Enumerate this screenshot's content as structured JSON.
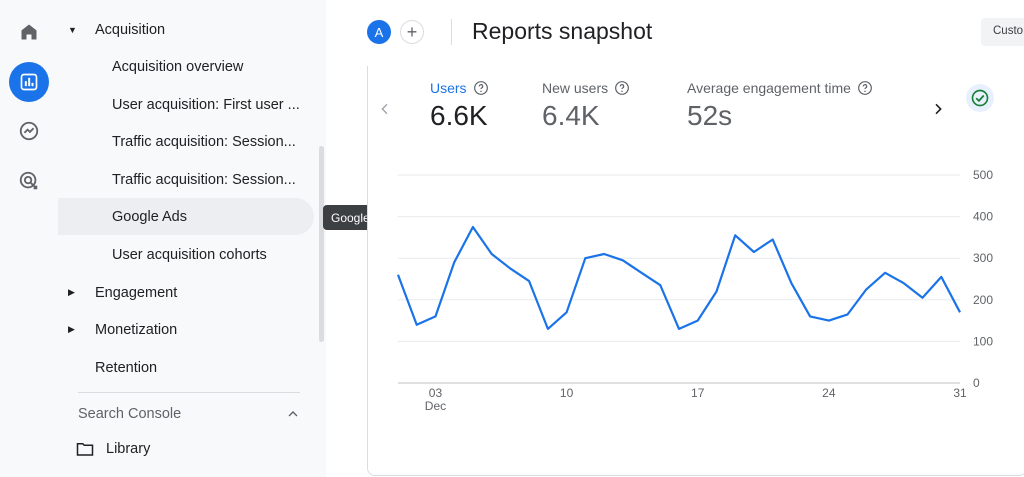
{
  "rail": {
    "items": [
      {
        "icon": "home-icon"
      },
      {
        "icon": "reports-icon",
        "active": true
      },
      {
        "icon": "explore-icon"
      },
      {
        "icon": "advertising-icon"
      }
    ]
  },
  "nav": {
    "acquisition": "Acquisition",
    "sub_items": [
      "Acquisition overview",
      "User acquisition: First user ...",
      "Traffic acquisition: Session...",
      "Traffic acquisition: Session...",
      "Google Ads",
      "User acquisition cohorts"
    ],
    "engagement": "Engagement",
    "monetization": "Monetization",
    "retention": "Retention",
    "search_console": "Search Console",
    "library": "Library"
  },
  "tooltip": "Google Ads",
  "header": {
    "avatar_letter": "A",
    "add_symbol": "+",
    "title": "Reports snapshot",
    "customize_label": "Custo"
  },
  "metrics": [
    {
      "label": "Users",
      "value": "6.6K",
      "active": true
    },
    {
      "label": "New users",
      "value": "6.4K",
      "active": false
    },
    {
      "label": "Average engagement time",
      "value": "52s",
      "active": false
    }
  ],
  "colors": {
    "accent": "#1a73e8",
    "line": "#1a73e8",
    "success": "#188038"
  },
  "chart_data": {
    "type": "line",
    "series": [
      {
        "values": [
          260,
          140,
          160,
          290,
          375,
          310,
          275,
          245,
          130,
          170,
          300,
          310,
          295,
          265,
          235,
          130,
          150,
          220,
          355,
          315,
          345,
          240,
          160,
          150,
          165,
          225,
          265,
          240,
          205,
          255,
          170
        ]
      }
    ],
    "x": [
      1,
      2,
      3,
      4,
      5,
      6,
      7,
      8,
      9,
      10,
      11,
      12,
      13,
      14,
      15,
      16,
      17,
      18,
      19,
      20,
      21,
      22,
      23,
      24,
      25,
      26,
      27,
      28,
      29,
      30,
      31
    ],
    "x_ticks": [
      {
        "x": 3,
        "label": "03",
        "sublabel": "Dec"
      },
      {
        "x": 10,
        "label": "10"
      },
      {
        "x": 17,
        "label": "17"
      },
      {
        "x": 24,
        "label": "24"
      },
      {
        "x": 31,
        "label": "31"
      }
    ],
    "y_ticks": [
      0,
      100,
      200,
      300,
      400,
      500
    ],
    "ylim": [
      0,
      500
    ],
    "xlim": [
      1,
      31
    ],
    "grid": true,
    "y_axis_side": "right",
    "title": "",
    "xlabel": "",
    "ylabel": ""
  }
}
